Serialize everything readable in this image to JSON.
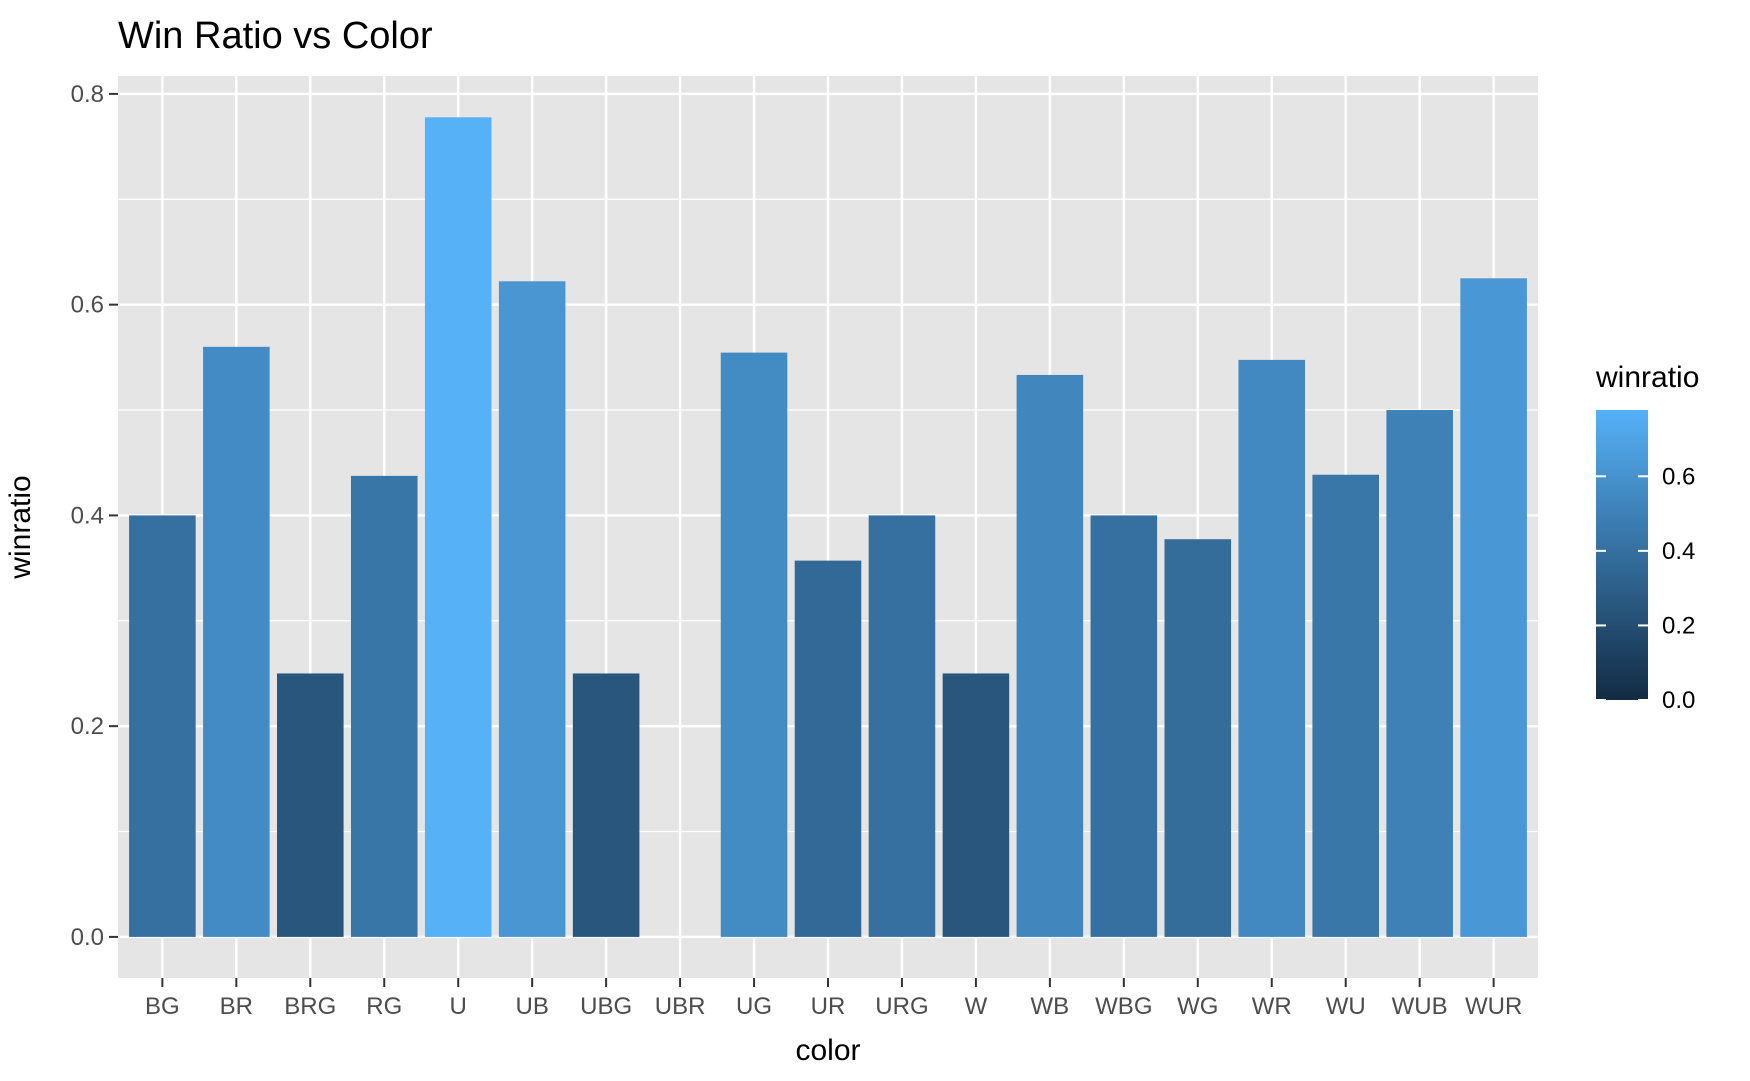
{
  "chart_data": {
    "type": "bar",
    "title": "Win Ratio vs Color",
    "xlabel": "color",
    "ylabel": "winratio",
    "categories": [
      "BG",
      "BR",
      "BRG",
      "RG",
      "U",
      "UB",
      "UBG",
      "UBR",
      "UG",
      "UR",
      "URG",
      "W",
      "WB",
      "WBG",
      "WG",
      "WR",
      "WU",
      "WUB",
      "WUR"
    ],
    "values": [
      0.4,
      0.56,
      0.25,
      0.4375,
      0.7778,
      0.6222,
      0.25,
      0.0,
      0.5545,
      0.3571,
      0.4,
      0.25,
      0.5333,
      0.4,
      0.3774,
      0.5476,
      0.4386,
      0.5,
      0.625
    ],
    "ylim": [
      -0.039,
      0.817
    ],
    "yticks": [
      0.0,
      0.2,
      0.4,
      0.6,
      0.8
    ],
    "ytick_labels": [
      "0.0",
      "0.2",
      "0.4",
      "0.6",
      "0.8"
    ],
    "grid": true,
    "background_color": "#e5e5e5",
    "grid_color": "#ffffff",
    "legend": {
      "title": "winratio",
      "placement": "right",
      "type": "colorbar",
      "color_low": "#132b43",
      "color_high": "#56b1f7",
      "range": [
        0.0,
        0.7778
      ],
      "ticks": [
        0.0,
        0.2,
        0.4,
        0.6
      ],
      "tick_labels": [
        "0.0",
        "0.2",
        "0.4",
        "0.6"
      ]
    }
  }
}
